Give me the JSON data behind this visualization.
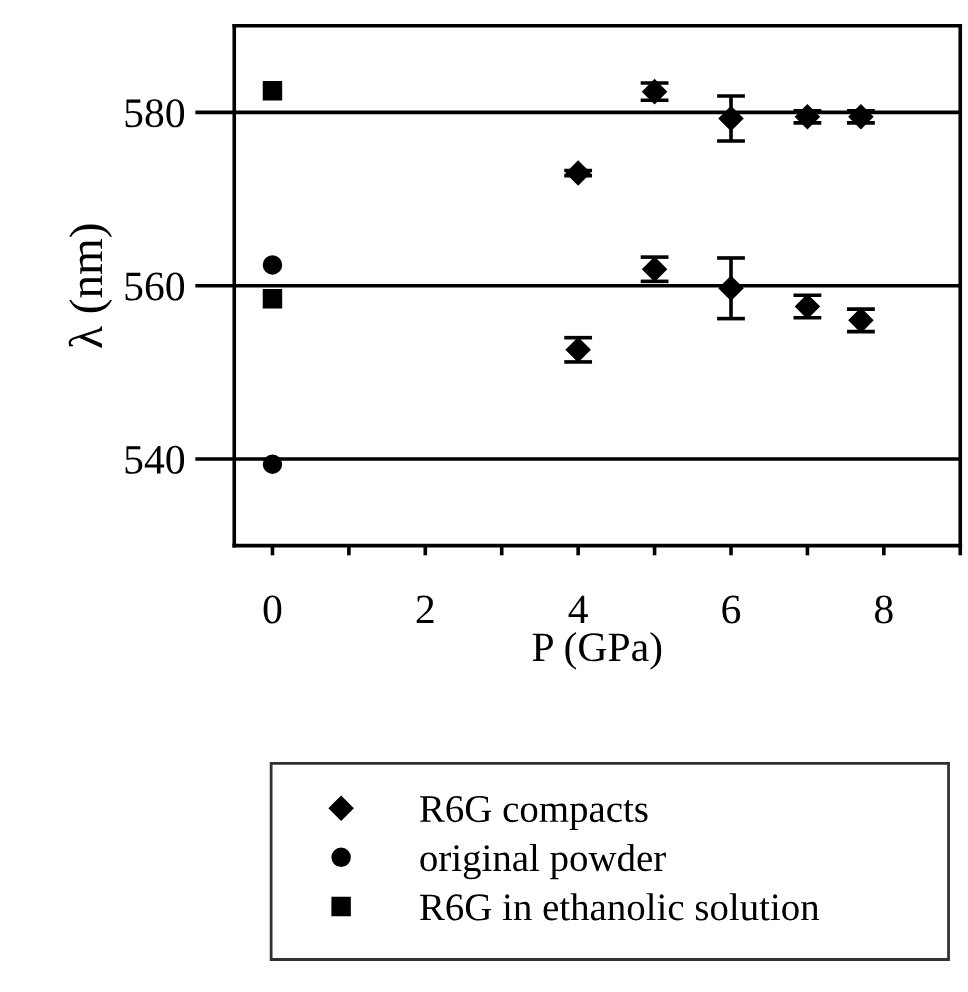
{
  "chart_data": {
    "type": "scatter",
    "xlabel": "P (GPa)",
    "ylabel": "λ (nm)",
    "xlim": [
      -0.5,
      9
    ],
    "ylim": [
      530,
      590
    ],
    "xticks": [
      0,
      {
        "value": 1,
        "label": null
      },
      2,
      {
        "value": 3,
        "label": null
      },
      4,
      {
        "value": 5,
        "label": null
      },
      6,
      {
        "value": 7,
        "label": null
      },
      8,
      {
        "value": 9,
        "label": null
      }
    ],
    "yticks": [
      540,
      560,
      580
    ],
    "ref_lines": [
      {
        "axis": "y",
        "value": 540,
        "color": "#000000"
      },
      {
        "axis": "y",
        "value": 560,
        "color": "#000000"
      },
      {
        "axis": "y",
        "value": 580,
        "color": "#000000"
      }
    ],
    "series": [
      {
        "name": "R6G compacts",
        "color": "#000000",
        "marker": "diamond",
        "x": [
          4,
          5,
          6,
          7,
          7.7,
          4,
          5,
          6,
          7,
          7.7
        ],
        "values": [
          573.0,
          582.4,
          579.3,
          579.5,
          579.5,
          552.6,
          561.9,
          559.7,
          557.6,
          556.0
        ],
        "errors": [
          0.3,
          1.0,
          2.6,
          0.7,
          0.7,
          1.4,
          1.4,
          3.5,
          1.3,
          1.3
        ]
      },
      {
        "name": "original powder",
        "color": "#000000",
        "marker": "circle",
        "x": [
          0,
          0
        ],
        "values": [
          562.4,
          539.4
        ]
      },
      {
        "name": "R6G in ethanolic solution",
        "color": "#000000",
        "marker": "square",
        "x": [
          0,
          0
        ],
        "values": [
          582.5,
          558.5
        ]
      }
    ],
    "legend": "bottom",
    "grid": false
  }
}
